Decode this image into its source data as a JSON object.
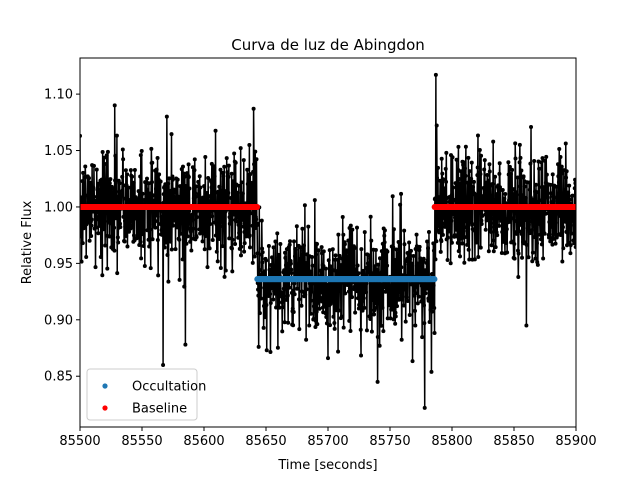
{
  "chart_data": {
    "type": "scatter",
    "title": "Curva de luz de Abingdon",
    "xlabel": "Time [seconds]",
    "ylabel": "Relative Flux",
    "xlim": [
      85500,
      85900
    ],
    "ylim": [
      0.805,
      1.132
    ],
    "xticks": [
      85500,
      85550,
      85600,
      85650,
      85700,
      85750,
      85800,
      85850,
      85900
    ],
    "yticks": [
      0.85,
      0.9,
      0.95,
      1.0,
      1.05,
      1.1
    ],
    "xtick_labels": [
      "85500",
      "85550",
      "85600",
      "85650",
      "85700",
      "85750",
      "85800",
      "85850",
      "85900"
    ],
    "ytick_labels": [
      "0.85",
      "0.90",
      "0.95",
      "1.00",
      "1.05",
      "1.10"
    ],
    "grid": false,
    "legend_position": "lower-left",
    "raw_series": {
      "color": "#000000",
      "style": "line-with-markers",
      "x_start": 85500,
      "x_end": 85900,
      "n_points": 1600,
      "baseline_level": 1.0,
      "occultation_level": 0.936,
      "occultation_start": 85643,
      "occultation_end": 85786,
      "noise_sigma": 0.025,
      "sample_points": [
        {
          "x": 85500,
          "y": 1.063
        },
        {
          "x": 85528,
          "y": 1.09
        },
        {
          "x": 85567,
          "y": 0.86
        },
        {
          "x": 85585,
          "y": 0.878
        },
        {
          "x": 85640,
          "y": 1.087
        },
        {
          "x": 85700,
          "y": 0.866
        },
        {
          "x": 85740,
          "y": 0.845
        },
        {
          "x": 85778,
          "y": 0.822
        },
        {
          "x": 85787,
          "y": 1.117
        },
        {
          "x": 85860,
          "y": 0.895
        }
      ]
    },
    "series": [
      {
        "name": "Occultation",
        "color": "#1f77b4",
        "x_start": 85643,
        "x_end": 85786,
        "value": 0.936
      },
      {
        "name": "Baseline",
        "color": "#ff0000",
        "segments": [
          {
            "x_start": 85500,
            "x_end": 85643
          },
          {
            "x_start": 85786,
            "x_end": 85900
          }
        ],
        "value": 1.0
      }
    ]
  }
}
